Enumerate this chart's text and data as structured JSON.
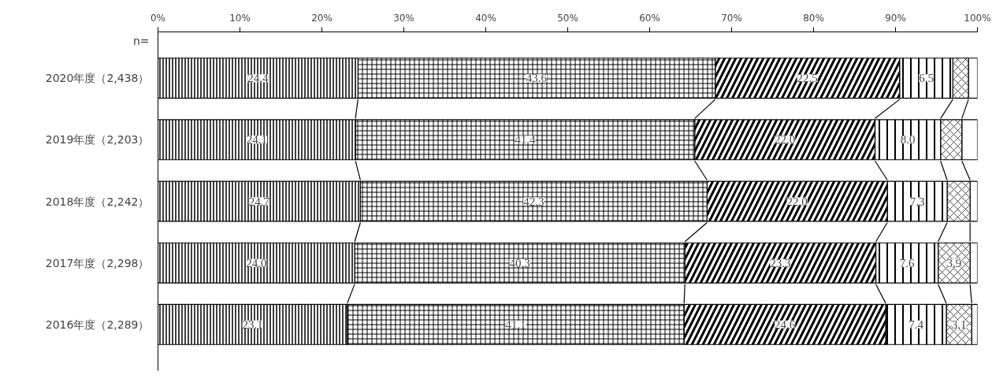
{
  "chart_data": {
    "type": "bar",
    "orientation": "horizontal",
    "stacked": true,
    "categories": [
      "2020年度（2,438）",
      "2019年度（2,203）",
      "2018年度（2,242）",
      "2017年度（2,298）",
      "2016年度（2,289）"
    ],
    "series": [
      {
        "color": "#ffffff",
        "values": [
          24.4,
          24.1,
          24.7,
          24.0,
          23.1
        ],
        "value_labels": [
          "24.4",
          "24.1",
          "24.7",
          "24.0",
          "23.1"
        ]
      },
      {
        "color": "#ffffff",
        "values": [
          43.6,
          41.4,
          42.3,
          40.3,
          41.1
        ],
        "value_labels": [
          "43.6",
          "41.4",
          "42.3",
          "40.3",
          "41.1"
        ]
      },
      {
        "color": "#ffffff",
        "values": [
          22.5,
          22.0,
          22.0,
          23.3,
          24.6
        ],
        "value_labels": [
          "22.5",
          "22.0",
          "22.0",
          "23.3",
          "24.6"
        ]
      },
      {
        "color": "#ffffff",
        "values": [
          6.5,
          8.0,
          7.3,
          7.6,
          7.4
        ],
        "value_labels": [
          "6.5",
          "8.0",
          "7.3",
          "7.6",
          "7.4"
        ]
      },
      {
        "color": "#ffffff",
        "values": [
          1.9,
          2.6,
          2.8,
          3.9,
          3.1
        ],
        "value_labels": [
          null,
          null,
          null,
          "3.9",
          "3.1"
        ]
      },
      {
        "color": "#ffffff",
        "values": [
          1.1,
          1.9,
          0.9,
          0.9,
          0.7
        ],
        "value_labels": [
          null,
          null,
          null,
          null,
          null
        ]
      }
    ],
    "xlim": [
      0,
      100
    ],
    "xticks": [
      {
        "value": 0,
        "label": "0%"
      },
      {
        "value": 10,
        "label": "10%"
      },
      {
        "value": 20,
        "label": "20%"
      },
      {
        "value": 30,
        "label": "30%"
      },
      {
        "value": 40,
        "label": "40%"
      },
      {
        "value": 50,
        "label": "50%"
      },
      {
        "value": 60,
        "label": "60%"
      },
      {
        "value": 70,
        "label": "70%"
      },
      {
        "value": 80,
        "label": "80%"
      },
      {
        "value": 90,
        "label": "90%"
      },
      {
        "value": 100,
        "label": "100%"
      }
    ],
    "annotations": [
      "n="
    ],
    "grid": false
  }
}
